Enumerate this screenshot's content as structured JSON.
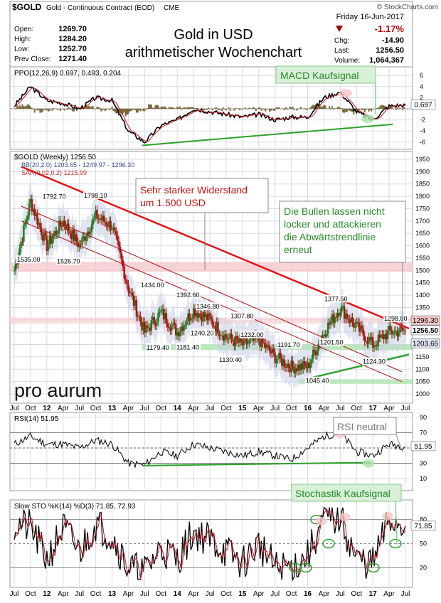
{
  "header": {
    "symbol": "$GOLD",
    "name": "Gold - Continuous Contract (EOD)",
    "exchange": "CME",
    "source": "© StockCharts.com",
    "date": "Friday 16-Jun-2017",
    "change_pct": "-1.17%",
    "stats_left": [
      {
        "label": "Open:",
        "value": "1269.70"
      },
      {
        "label": "High:",
        "value": "1284.20"
      },
      {
        "label": "Low:",
        "value": "1252.70"
      },
      {
        "label": "Prev Close:",
        "value": "1271.40"
      }
    ],
    "stats_right": [
      {
        "label": "Chg:",
        "value": "-14.90"
      },
      {
        "label": "Last:",
        "value": "1256.50"
      },
      {
        "label": "Volume:",
        "value": "1,064,367"
      }
    ],
    "title_line1": "Gold in USD",
    "title_line2": "arithmetischer Wochenchart"
  },
  "colors": {
    "panel_bg": "#ffffff",
    "grid": "#d8dbe3",
    "price_up": "#1f7a1f",
    "price_down": "#b01010",
    "resistance_line": "#e01515",
    "green_trend": "#2aa12a",
    "bollinger_fill": "#c9cfe6",
    "pink_zone": "#f6c8cc",
    "green_zone": "#a9e2a9",
    "annotation_green": "#d7f0d7",
    "macd_line": "#000000",
    "signal_line": "#c11a28",
    "histogram": "#7a6a3a"
  },
  "time_axis": {
    "labels": [
      "Jul",
      "Oct",
      "12",
      "Apr",
      "Jul",
      "Oct",
      "13",
      "Apr",
      "Jul",
      "Oct",
      "14",
      "Apr",
      "Jul",
      "Oct",
      "15",
      "Apr",
      "Jul",
      "Oct",
      "16",
      "Apr",
      "Jul",
      "Oct",
      "17",
      "Apr",
      "Jul"
    ]
  },
  "ppo_panel": {
    "legend": "PPO(12,26,9) 0.697, 0.493, 0.204",
    "ticks": [
      "6",
      "4",
      "2",
      "-2",
      "-4",
      "-6"
    ],
    "last_value": "0.697",
    "annotation": "MACD Kaufsignal"
  },
  "price_panel": {
    "legend_main": "$GOLD (Weekly) 1256.50",
    "legend_bb": "BB(20,2.0) 1203.65 - 1249.97 - 1296.30",
    "legend_sar": "SAR(0.02,0.2) 1215.99",
    "ticks": [
      "1950",
      "1900",
      "1850",
      "1800",
      "1750",
      "1700",
      "1650",
      "1600",
      "1550",
      "1500",
      "1450",
      "1400",
      "1350",
      "1300",
      "1250",
      "1200",
      "1150",
      "1100",
      "1050",
      "1000"
    ],
    "right_labels": [
      "1296.30",
      "1256.50",
      "1203.65"
    ],
    "price_labels": [
      "1792.70",
      "1798.10",
      "1535.00",
      "1526.70",
      "1434.00",
      "1392.60",
      "1346.80",
      "1307.80",
      "1232.00",
      "1191.70",
      "1377.50",
      "1298.80",
      "1240.20",
      "1179.40",
      "1181.40",
      "1130.40",
      "1201.50",
      "1124.30",
      "1045.40"
    ],
    "annotation_resistance": "Sehr starker Widerstand\num 1.500 USD",
    "annotation_bulls": "Die Bullen lassen nicht\nlocker und attackieren\ndie Abwärtstrendlinie\nerneut",
    "logo": "pro aurum"
  },
  "rsi_panel": {
    "legend": "RSI(14) 51.95",
    "ticks": [
      "90",
      "70",
      "50",
      "30",
      "10"
    ],
    "last_value": "51.95",
    "annotation": "RSI neutral"
  },
  "sto_panel": {
    "legend": "Slow STO %K(14) %D(3) 71.85, 72.93",
    "ticks": [
      "80",
      "50",
      "20"
    ],
    "last_value": "71.85",
    "annotation": "Stochastik Kaufsignal"
  },
  "chart_data": {
    "type": "line",
    "title": "Gold in USD arithmetischer Wochenchart",
    "xlabel": "",
    "ylabel": "",
    "ylim": [
      1000,
      1950
    ],
    "x": [
      "Jul",
      "Oct",
      "12",
      "Apr",
      "Jul",
      "Oct",
      "13",
      "Apr",
      "Jul",
      "Oct",
      "14",
      "Apr",
      "Jul",
      "Oct",
      "15",
      "Apr",
      "Jul",
      "Oct",
      "16",
      "Apr",
      "Jul",
      "Oct",
      "17",
      "Apr",
      "Jul"
    ],
    "series": [
      {
        "name": "$GOLD (Weekly)",
        "values": [
          1500,
          1780,
          1600,
          1700,
          1600,
          1720,
          1680,
          1430,
          1250,
          1330,
          1250,
          1340,
          1300,
          1230,
          1200,
          1220,
          1150,
          1110,
          1110,
          1250,
          1350,
          1270,
          1200,
          1250,
          1256.5
        ]
      }
    ],
    "ppo": [
      0.5,
      4,
      1.5,
      1,
      0,
      2,
      1.5,
      -4,
      -6,
      -3,
      -2,
      0,
      -0.5,
      -1,
      -1.5,
      -1,
      -2,
      -1.5,
      -1.5,
      2,
      3,
      -0.5,
      -2,
      0.5,
      0.697
    ],
    "rsi": [
      55,
      65,
      55,
      55,
      50,
      60,
      55,
      30,
      28,
      45,
      40,
      55,
      50,
      45,
      40,
      45,
      40,
      35,
      50,
      65,
      70,
      45,
      40,
      55,
      51.95
    ],
    "stochastic": [
      75,
      70,
      30,
      70,
      40,
      75,
      60,
      20,
      15,
      45,
      30,
      65,
      55,
      40,
      25,
      50,
      20,
      20,
      35,
      80,
      82,
      30,
      25,
      80,
      71.85
    ]
  }
}
